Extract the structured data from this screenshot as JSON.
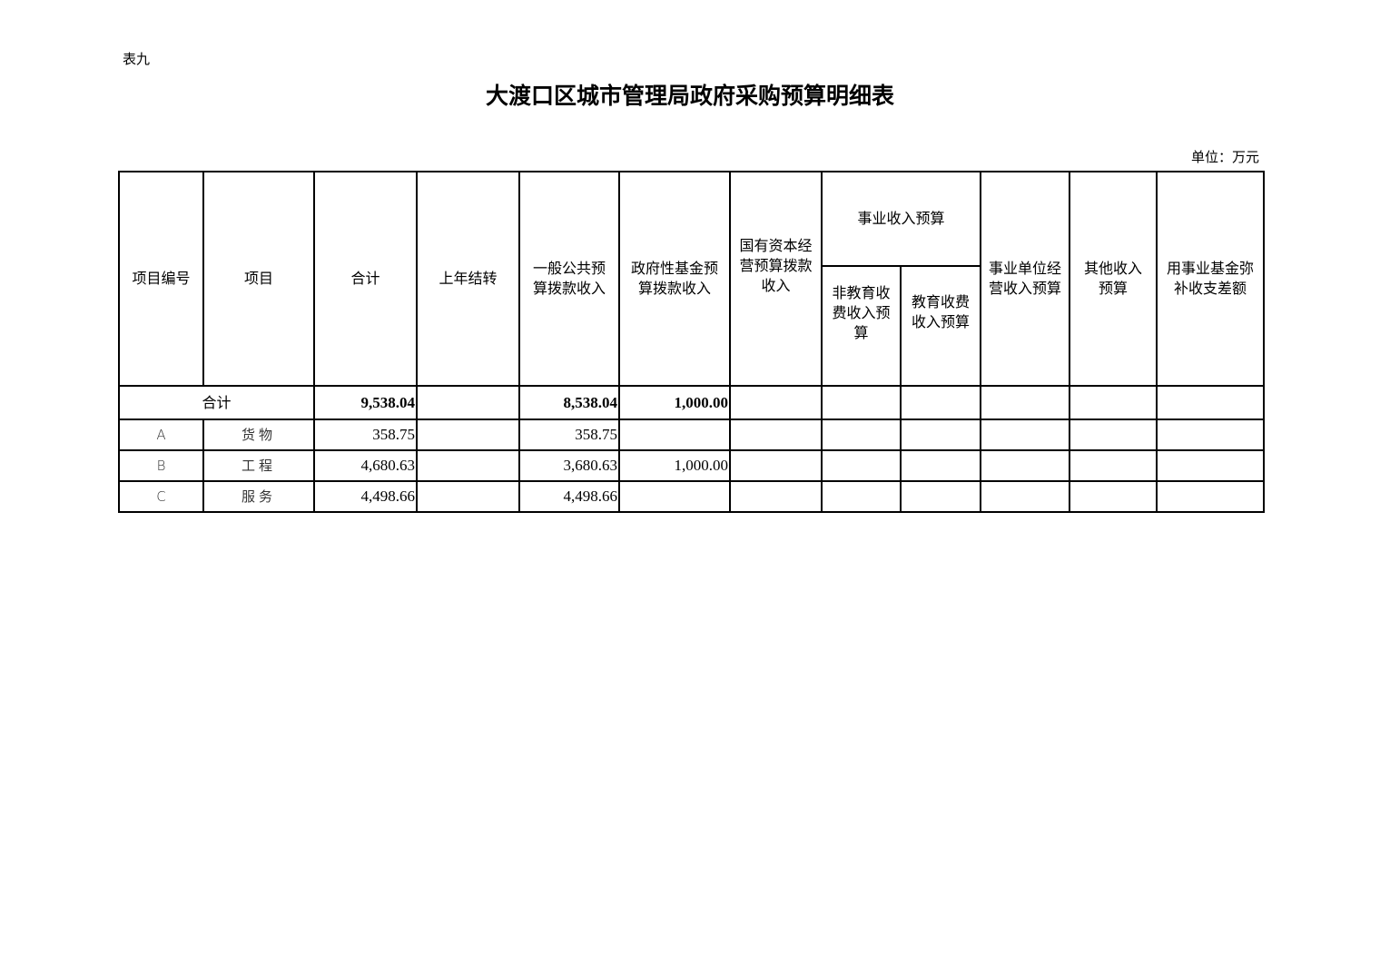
{
  "doc": {
    "tag": "表九",
    "title": "大渡口区城市管理局政府采购预算明细表",
    "unit": "单位：万元"
  },
  "headers": {
    "code": [
      "项目编号"
    ],
    "item": [
      "项目"
    ],
    "total": [
      "合计"
    ],
    "carryover": [
      "上年结转"
    ],
    "general": [
      "一般公共预",
      "算拨款收入"
    ],
    "govfund": [
      "政府性基金预",
      "算拨款收入"
    ],
    "stateowned": [
      "国有资本经",
      "营预算拨款",
      "收入"
    ],
    "business": [
      "事业收入预算"
    ],
    "noneducation": [
      "非教育收",
      "费收入预",
      "算"
    ],
    "education": [
      "教育收费",
      "收入预算"
    ],
    "operating": [
      "事业单位经",
      "营收入预算"
    ],
    "other": [
      "其他收入",
      "预算"
    ],
    "fund": [
      "用事业基金弥",
      "补收支差额"
    ]
  },
  "total_row": {
    "label": "合计",
    "total": "9,538.04",
    "carryover": "",
    "general": "8,538.04",
    "govfund": "1,000.00"
  },
  "rows": [
    {
      "code": "A",
      "item": "货物",
      "total": "358.75",
      "general": "358.75",
      "govfund": ""
    },
    {
      "code": "B",
      "item": "工程",
      "total": "4,680.63",
      "general": "3,680.63",
      "govfund": "1,000.00"
    },
    {
      "code": "C",
      "item": "服务",
      "total": "4,498.66",
      "general": "4,498.66",
      "govfund": ""
    }
  ]
}
